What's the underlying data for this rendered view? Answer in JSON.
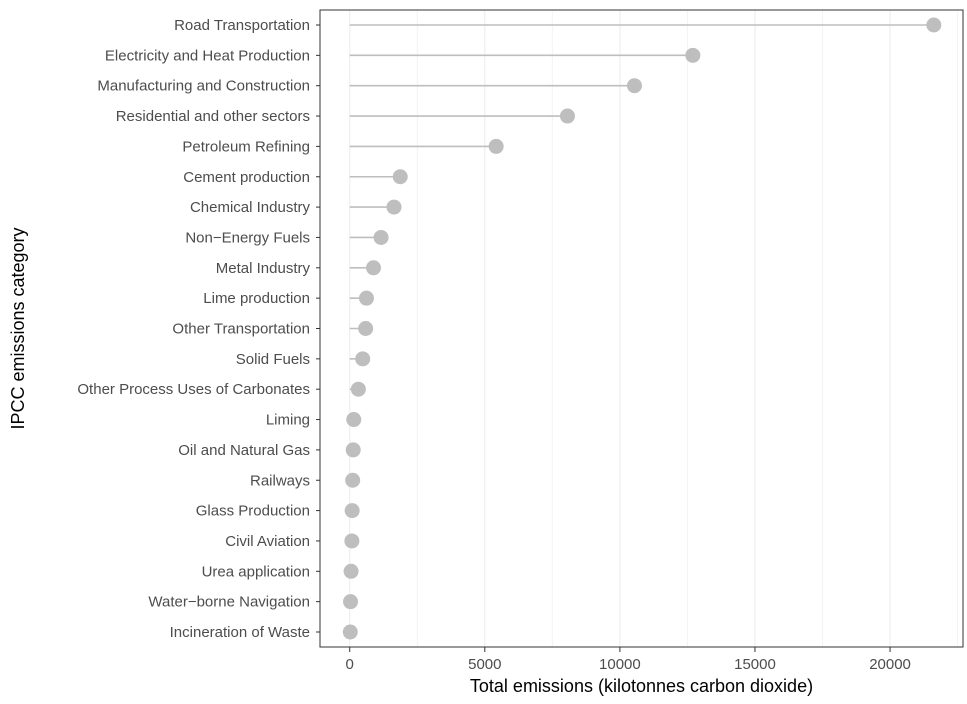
{
  "chart_data": {
    "type": "lollipop",
    "xlabel": "Total emissions (kilotonnes carbon dioxide)",
    "ylabel": "IPCC emissions category",
    "xlim": [
      -1100,
      22700
    ],
    "x_ticks": [
      0,
      5000,
      10000,
      15000,
      20000
    ],
    "x_tick_labels": [
      "0",
      "5000",
      "10000",
      "15000",
      "20000"
    ],
    "grid": true,
    "colors": {
      "segment": "#bebebe",
      "point": "#bebebe",
      "grid_major": "#ebebeb",
      "grid_minor": "#f3f3f3",
      "panel_border": "#333333"
    },
    "categories": [
      "Road Transportation",
      "Electricity and Heat Production",
      "Manufacturing and Construction",
      "Residential and other sectors",
      "Petroleum Refining",
      "Cement production",
      "Chemical Industry",
      "Non−Energy Fuels",
      "Metal Industry",
      "Lime production",
      "Other Transportation",
      "Solid Fuels",
      "Other Process Uses of Carbonates",
      "Liming",
      "Oil and Natural Gas",
      "Railways",
      "Glass Production",
      "Civil Aviation",
      "Urea application",
      "Water−borne Navigation",
      "Incineration of Waste"
    ],
    "values": [
      21620,
      12700,
      10540,
      8060,
      5420,
      1870,
      1640,
      1160,
      880,
      620,
      590,
      480,
      320,
      150,
      130,
      110,
      90,
      80,
      50,
      30,
      20
    ]
  }
}
